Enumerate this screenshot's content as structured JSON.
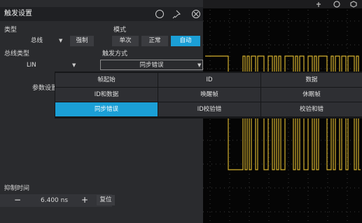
{
  "panel": {
    "title": "触发设置"
  },
  "type": {
    "label": "类型",
    "value": "总线",
    "force": "强制"
  },
  "mode": {
    "label": "模式",
    "options": [
      "单次",
      "正常",
      "自动"
    ]
  },
  "bus_type": {
    "label": "总线类型",
    "value": "LIN"
  },
  "trigger_method": {
    "label": "触发方式",
    "value": "同步错误"
  },
  "params": {
    "label": "参数设置"
  },
  "menu": {
    "rows": [
      [
        "帧起始",
        "ID",
        "数据"
      ],
      [
        "ID和数据",
        "唤醒帧",
        "休眠帧"
      ],
      [
        "同步错误",
        "ID校验错",
        "校验和错"
      ]
    ]
  },
  "holdoff": {
    "label": "抑制时间",
    "minus": "−",
    "value": "6.400 ns",
    "plus": "+",
    "reset": "复位"
  }
}
